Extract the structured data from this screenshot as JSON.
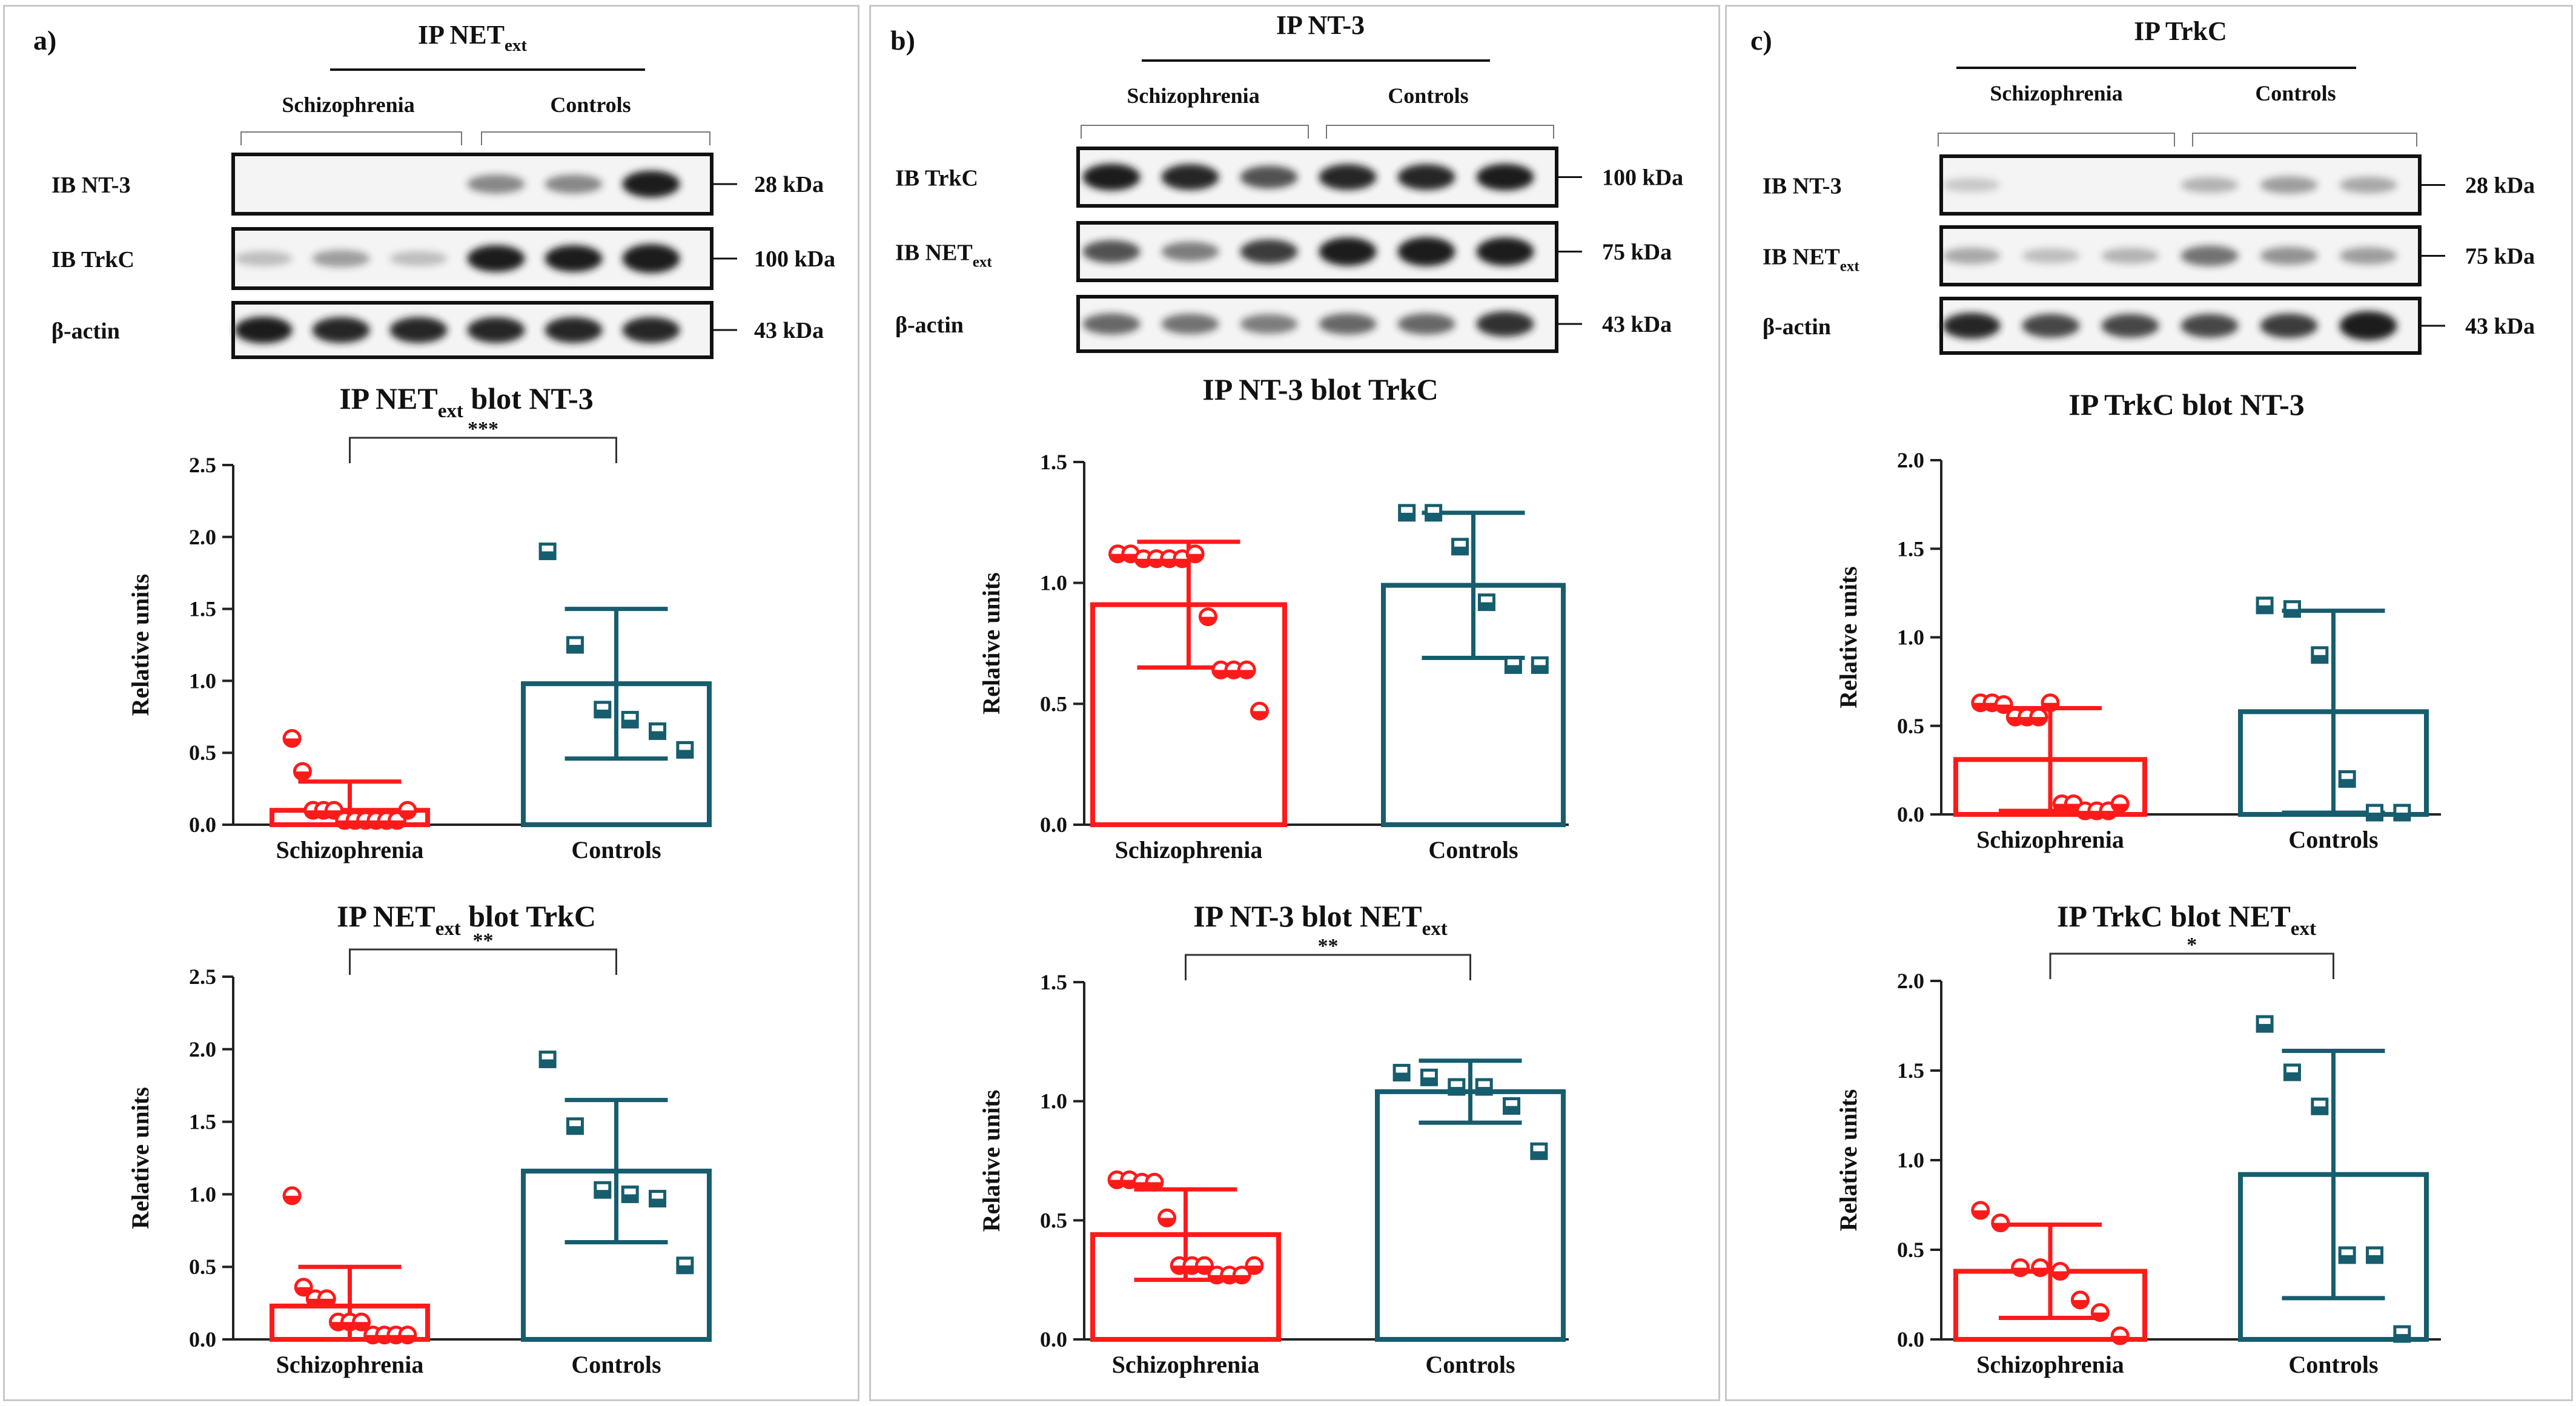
{
  "colors": {
    "schizo": "#ff1a1a",
    "controls": "#165d6e",
    "axis": "#222222",
    "blot_dark": "#1a1a1a"
  },
  "panels": [
    {
      "letter": "a)",
      "ip_title": "IP NET",
      "ip_sub": "ext",
      "group_labels": [
        "Schizophrenia",
        "Controls"
      ],
      "blots": [
        {
          "label": "IB NT-3",
          "label_sub": "",
          "kda": "28 kDa",
          "lanes": [
            0.0,
            0.0,
            0.0,
            0.35,
            0.35,
            0.85
          ]
        },
        {
          "label": "IB TrkC",
          "label_sub": "",
          "kda": "100 kDa",
          "lanes": [
            0.1,
            0.25,
            0.1,
            0.85,
            0.85,
            1.0
          ]
        },
        {
          "label": "β-actin",
          "label_sub": "",
          "kda": "43 kDa",
          "lanes": [
            0.85,
            0.8,
            0.8,
            0.8,
            0.8,
            0.8
          ]
        }
      ]
    },
    {
      "letter": "b)",
      "ip_title": "IP NT-3",
      "ip_sub": "",
      "group_labels": [
        "Schizophrenia",
        "Controls"
      ],
      "blots": [
        {
          "label": "IB TrkC",
          "label_sub": "",
          "kda": "100 kDa",
          "lanes": [
            0.85,
            0.8,
            0.6,
            0.8,
            0.8,
            0.85
          ]
        },
        {
          "label": "IB NET",
          "label_sub": "ext",
          "kda": "75 kDa",
          "lanes": [
            0.6,
            0.4,
            0.7,
            0.95,
            1.0,
            0.95
          ]
        },
        {
          "label": "β-actin",
          "label_sub": "",
          "kda": "43 kDa",
          "lanes": [
            0.5,
            0.45,
            0.4,
            0.5,
            0.5,
            0.75
          ]
        }
      ]
    },
    {
      "letter": "c)",
      "ip_title": "IP TrkC",
      "ip_sub": "",
      "group_labels": [
        "Schizophrenia",
        "Controls"
      ],
      "blots": [
        {
          "label": "IB NT-3",
          "label_sub": "",
          "kda": "28 kDa",
          "lanes": [
            0.05,
            0.0,
            0.0,
            0.15,
            0.25,
            0.2
          ]
        },
        {
          "label": "IB NET",
          "label_sub": "ext",
          "kda": "75 kDa",
          "lanes": [
            0.2,
            0.1,
            0.15,
            0.45,
            0.3,
            0.25
          ]
        },
        {
          "label": "β-actin",
          "label_sub": "",
          "kda": "43 kDa",
          "lanes": [
            0.8,
            0.65,
            0.65,
            0.65,
            0.7,
            1.0
          ]
        }
      ]
    }
  ],
  "chart_data": [
    {
      "panel": "a",
      "position": "upper",
      "type": "bar",
      "title": "IP NET",
      "title_sub": "ext",
      "title_tail": " blot NT-3",
      "ylabel": "Relative units",
      "ylim": [
        0,
        2.5
      ],
      "yticks": [
        "0.0",
        "0.5",
        "1.0",
        "1.5",
        "2.0",
        "2.5"
      ],
      "categories": [
        "Schizophrenia",
        "Controls"
      ],
      "values": [
        0.1,
        0.98
      ],
      "sd": [
        0.2,
        0.52
      ],
      "points": [
        [
          0.6,
          0.37,
          0.1,
          0.1,
          0.1,
          0.03,
          0.03,
          0.03,
          0.03,
          0.03,
          0.03,
          0.1
        ],
        [
          1.9,
          1.25,
          0.8,
          0.73,
          0.65,
          0.52
        ]
      ],
      "significance": "***"
    },
    {
      "panel": "a",
      "position": "lower",
      "type": "bar",
      "title": "IP NET",
      "title_sub": "ext",
      "title_tail": " blot TrkC",
      "ylabel": "Relative units",
      "ylim": [
        0,
        2.5
      ],
      "yticks": [
        "0.0",
        "0.5",
        "1.0",
        "1.5",
        "2.0",
        "2.5"
      ],
      "categories": [
        "Schizophrenia",
        "Controls"
      ],
      "values": [
        0.23,
        1.16
      ],
      "sd": [
        0.27,
        0.49
      ],
      "points": [
        [
          0.99,
          0.36,
          0.28,
          0.28,
          0.12,
          0.12,
          0.12,
          0.03,
          0.03,
          0.03,
          0.03
        ],
        [
          1.93,
          1.47,
          1.03,
          1.0,
          0.97,
          0.51
        ]
      ],
      "significance": "**"
    },
    {
      "panel": "b",
      "position": "upper",
      "type": "bar",
      "title": "IP NT-3 blot TrkC",
      "title_sub": "",
      "title_tail": "",
      "ylabel": "Relative units",
      "ylim": [
        0,
        1.5
      ],
      "yticks": [
        "0.0",
        "0.5",
        "1.0",
        "1.5"
      ],
      "categories": [
        "Schizophrenia",
        "Controls"
      ],
      "values": [
        0.91,
        0.99
      ],
      "sd": [
        0.26,
        0.3
      ],
      "points": [
        [
          1.12,
          1.12,
          1.1,
          1.1,
          1.1,
          1.1,
          1.12,
          0.86,
          0.64,
          0.64,
          0.64,
          0.47
        ],
        [
          1.29,
          1.29,
          1.15,
          0.92,
          0.66,
          0.66
        ]
      ],
      "significance": ""
    },
    {
      "panel": "b",
      "position": "lower",
      "type": "bar",
      "title": "IP NT-3 blot NET",
      "title_sub": "ext",
      "title_tail": "",
      "ylabel": "Relative units",
      "ylim": [
        0,
        1.5
      ],
      "yticks": [
        "0.0",
        "0.5",
        "1.0",
        "1.5"
      ],
      "categories": [
        "Schizophrenia",
        "Controls"
      ],
      "values": [
        0.44,
        1.04
      ],
      "sd": [
        0.19,
        0.13
      ],
      "points": [
        [
          0.67,
          0.67,
          0.66,
          0.66,
          0.51,
          0.31,
          0.31,
          0.31,
          0.27,
          0.27,
          0.27,
          0.31
        ],
        [
          1.12,
          1.1,
          1.06,
          1.06,
          0.98,
          0.79
        ]
      ],
      "significance": "**"
    },
    {
      "panel": "c",
      "position": "upper",
      "type": "bar",
      "title": "IP TrkC blot NT-3",
      "title_sub": "",
      "title_tail": "",
      "ylabel": "Relative units",
      "ylim": [
        0,
        2.0
      ],
      "yticks": [
        "0.0",
        "0.5",
        "1.0",
        "1.5",
        "2.0"
      ],
      "categories": [
        "Schizophrenia",
        "Controls"
      ],
      "values": [
        0.31,
        0.58
      ],
      "sd": [
        0.29,
        0.57
      ],
      "points": [
        [
          0.63,
          0.63,
          0.62,
          0.55,
          0.55,
          0.55,
          0.63,
          0.06,
          0.06,
          0.02,
          0.02,
          0.02,
          0.06
        ],
        [
          1.18,
          1.16,
          0.9,
          0.2,
          0.01,
          0.01
        ]
      ],
      "significance": ""
    },
    {
      "panel": "c",
      "position": "lower",
      "type": "bar",
      "title": "IP TrkC blot NET",
      "title_sub": "ext",
      "title_tail": "",
      "ylabel": "Relative units",
      "ylim": [
        0,
        2.0
      ],
      "yticks": [
        "0.0",
        "0.5",
        "1.0",
        "1.5",
        "2.0"
      ],
      "categories": [
        "Schizophrenia",
        "Controls"
      ],
      "values": [
        0.38,
        0.92
      ],
      "sd": [
        0.26,
        0.69
      ],
      "points": [
        [
          0.72,
          0.65,
          0.4,
          0.4,
          0.38,
          0.22,
          0.15,
          0.02
        ],
        [
          1.76,
          1.49,
          1.3,
          0.47,
          0.47,
          0.03
        ]
      ],
      "significance": "*"
    }
  ]
}
